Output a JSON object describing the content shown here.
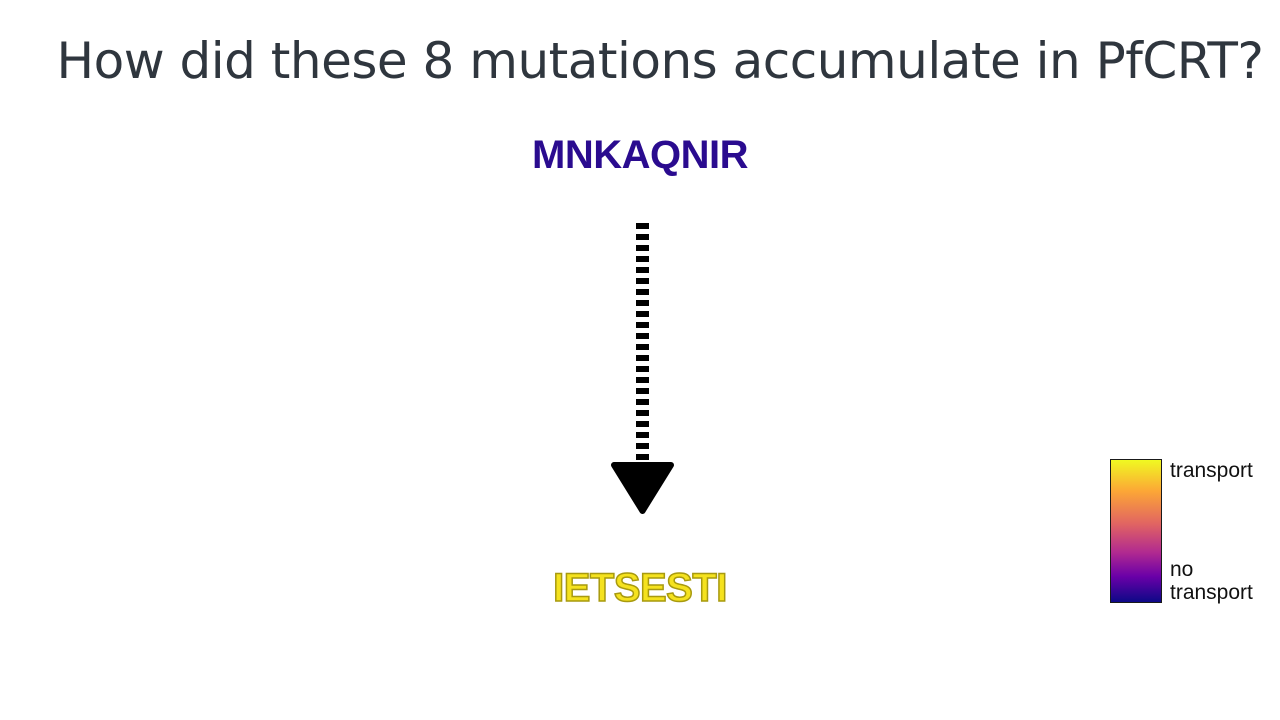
{
  "slide": {
    "title": "How did these 8 mutations accumulate in PfCRT?"
  },
  "diagram": {
    "start_sequence": "MNKAQNIR",
    "end_sequence": "IETSESTI"
  },
  "legend": {
    "top_label": "transport",
    "bottom_label_line1": "no",
    "bottom_label_line2": "transport",
    "colormap": "plasma",
    "high_color": "#f0f921",
    "low_color": "#0d0887"
  }
}
